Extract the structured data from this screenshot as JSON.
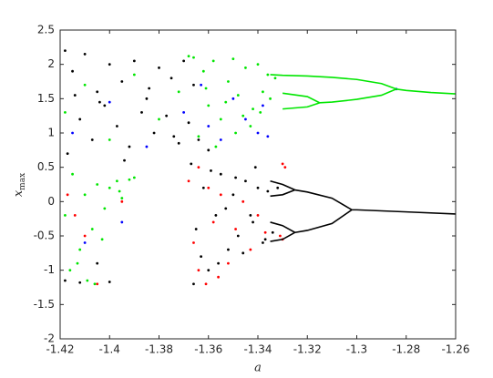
{
  "chart_data": {
    "type": "scatter",
    "xlabel": "a",
    "ylabel": "x",
    "ylabel_subscript": "max",
    "xlim": [
      -1.42,
      -1.26
    ],
    "xticks": [
      -1.42,
      -1.4,
      -1.38,
      -1.36,
      -1.34,
      -1.32,
      -1.3,
      -1.28,
      -1.26
    ],
    "ylim": [
      -2,
      2.5
    ],
    "yticks": [
      -2,
      -1.5,
      -1,
      -0.5,
      0,
      0.5,
      1,
      1.5,
      2,
      2.5
    ],
    "grid": false,
    "series": [
      {
        "color": "#000000",
        "style": "points",
        "x": [
          -1.418,
          -1.415,
          -1.41,
          -1.405,
          -1.4,
          -1.395,
          -1.39,
          -1.385,
          -1.38,
          -1.375,
          -1.37,
          -1.366,
          -1.417,
          -1.412,
          -1.407,
          -1.402,
          -1.397,
          -1.392,
          -1.387,
          -1.382,
          -1.377,
          -1.372,
          -1.368,
          -1.414,
          -1.404,
          -1.394,
          -1.384,
          -1.374,
          -1.364,
          -1.36
        ],
        "values": [
          2.2,
          1.9,
          2.15,
          1.6,
          2.0,
          1.75,
          2.05,
          1.5,
          1.95,
          1.8,
          2.05,
          1.7,
          0.7,
          1.2,
          0.9,
          1.4,
          1.1,
          0.8,
          1.3,
          1.0,
          1.25,
          0.85,
          1.15,
          1.55,
          1.45,
          0.6,
          1.65,
          0.95,
          0.9,
          0.75
        ]
      },
      {
        "color": "#00e600",
        "style": "points",
        "x": [
          -1.418,
          -1.41,
          -1.4,
          -1.39,
          -1.38,
          -1.372,
          -1.366,
          -1.362,
          -1.36,
          -1.358,
          -1.355,
          -1.352,
          -1.35,
          -1.348,
          -1.345,
          -1.342,
          -1.34,
          -1.338,
          -1.336,
          -1.364,
          -1.361,
          -1.357,
          -1.353,
          -1.349,
          -1.346,
          -1.343,
          -1.339,
          -1.335,
          -1.333,
          -1.368
        ],
        "values": [
          1.3,
          1.7,
          0.9,
          1.85,
          1.2,
          1.6,
          2.1,
          1.9,
          1.4,
          2.05,
          1.2,
          1.75,
          2.08,
          1.55,
          1.95,
          1.35,
          2.0,
          1.6,
          1.85,
          0.95,
          1.65,
          0.8,
          1.45,
          1.0,
          1.25,
          1.1,
          1.3,
          1.5,
          1.8,
          2.12
        ]
      },
      {
        "color": "#0000ff",
        "style": "points",
        "x": [
          -1.415,
          -1.4,
          -1.385,
          -1.37,
          -1.36,
          -1.355,
          -1.35,
          -1.345,
          -1.34,
          -1.338,
          -1.336,
          -1.363,
          -1.41,
          -1.395,
          -1.284
        ],
        "values": [
          1.0,
          1.45,
          0.8,
          1.3,
          1.1,
          0.9,
          1.5,
          1.2,
          1.0,
          1.4,
          0.95,
          1.7,
          -0.6,
          -0.3,
          1.64
        ]
      },
      {
        "color": "#000000",
        "style": "points",
        "x": [
          -1.367,
          -1.365,
          -1.362,
          -1.36,
          -1.357,
          -1.355,
          -1.352,
          -1.35,
          -1.348,
          -1.345,
          -1.342,
          -1.34,
          -1.338,
          -1.336,
          -1.334,
          -1.332,
          -1.366,
          -1.363,
          -1.359,
          -1.356,
          -1.353,
          -1.349,
          -1.346,
          -1.343,
          -1.341,
          -1.337,
          -1.418,
          -1.412,
          -1.405,
          -1.4
        ],
        "values": [
          0.55,
          -0.4,
          0.2,
          -1.0,
          -0.2,
          0.4,
          -0.7,
          0.1,
          -0.5,
          0.3,
          -0.3,
          0.2,
          -0.6,
          0.15,
          -0.45,
          0.2,
          -1.2,
          -0.8,
          0.45,
          -0.9,
          -0.1,
          0.35,
          -0.75,
          -0.2,
          0.5,
          -0.55,
          -1.15,
          -1.18,
          -0.9,
          -1.17
        ]
      },
      {
        "color": "#ff0000",
        "style": "points",
        "x": [
          -1.368,
          -1.366,
          -1.364,
          -1.361,
          -1.358,
          -1.355,
          -1.352,
          -1.349,
          -1.346,
          -1.343,
          -1.34,
          -1.337,
          -1.364,
          -1.36,
          -1.356,
          -1.417,
          -1.41,
          -1.405,
          -1.33,
          -1.329,
          -1.331,
          -1.33,
          -1.414,
          -1.395
        ],
        "values": [
          0.3,
          -0.6,
          0.5,
          -1.2,
          -0.3,
          0.1,
          -0.9,
          -0.4,
          0.0,
          -0.7,
          -0.2,
          -0.45,
          -1.0,
          0.2,
          -1.1,
          0.1,
          -0.5,
          -1.2,
          0.55,
          0.5,
          -0.5,
          -0.55,
          -0.2,
          0.0
        ]
      },
      {
        "color": "#00e600",
        "style": "points",
        "x": [
          -1.418,
          -1.415,
          -1.412,
          -1.41,
          -1.407,
          -1.405,
          -1.402,
          -1.4,
          -1.397,
          -1.395,
          -1.392,
          -1.39,
          -1.416,
          -1.409,
          -1.403,
          -1.396,
          -1.413,
          -1.406
        ],
        "values": [
          -0.2,
          0.4,
          -0.7,
          0.1,
          -0.4,
          0.25,
          -0.1,
          0.2,
          0.3,
          0.05,
          0.32,
          0.35,
          -1.0,
          -1.15,
          -0.55,
          0.15,
          -0.9,
          -1.2
        ]
      },
      {
        "color": "#00e600",
        "style": "line",
        "x": [
          -1.26,
          -1.27,
          -1.28,
          -1.284
        ],
        "values": [
          1.57,
          1.59,
          1.62,
          1.64
        ]
      },
      {
        "color": "#00e600",
        "style": "line",
        "x": [
          -1.284,
          -1.29,
          -1.3,
          -1.31,
          -1.32,
          -1.33,
          -1.335
        ],
        "values": [
          1.64,
          1.72,
          1.78,
          1.81,
          1.83,
          1.84,
          1.85
        ]
      },
      {
        "color": "#00e600",
        "style": "line",
        "x": [
          -1.284,
          -1.29,
          -1.3,
          -1.31,
          -1.315
        ],
        "values": [
          1.64,
          1.55,
          1.49,
          1.45,
          1.44
        ]
      },
      {
        "color": "#00e600",
        "style": "line",
        "x": [
          -1.315,
          -1.32,
          -1.33
        ],
        "values": [
          1.44,
          1.53,
          1.58
        ]
      },
      {
        "color": "#00e600",
        "style": "line",
        "x": [
          -1.315,
          -1.32,
          -1.33
        ],
        "values": [
          1.44,
          1.38,
          1.35
        ]
      },
      {
        "color": "#000000",
        "style": "line",
        "x": [
          -1.26,
          -1.28,
          -1.3,
          -1.302
        ],
        "values": [
          -0.18,
          -0.15,
          -0.12,
          -0.12
        ]
      },
      {
        "color": "#000000",
        "style": "line",
        "x": [
          -1.302,
          -1.31,
          -1.32,
          -1.325
        ],
        "values": [
          -0.12,
          0.05,
          0.14,
          0.17
        ]
      },
      {
        "color": "#000000",
        "style": "line",
        "x": [
          -1.325,
          -1.33,
          -1.335
        ],
        "values": [
          0.17,
          0.25,
          0.3
        ]
      },
      {
        "color": "#000000",
        "style": "line",
        "x": [
          -1.325,
          -1.33,
          -1.335
        ],
        "values": [
          0.17,
          0.1,
          0.08
        ]
      },
      {
        "color": "#000000",
        "style": "line",
        "x": [
          -1.302,
          -1.31,
          -1.32,
          -1.325
        ],
        "values": [
          -0.12,
          -0.32,
          -0.42,
          -0.45
        ]
      },
      {
        "color": "#000000",
        "style": "line",
        "x": [
          -1.325,
          -1.33,
          -1.335
        ],
        "values": [
          -0.45,
          -0.35,
          -0.3
        ]
      },
      {
        "color": "#000000",
        "style": "line",
        "x": [
          -1.325,
          -1.33,
          -1.335
        ],
        "values": [
          -0.45,
          -0.55,
          -0.58
        ]
      }
    ]
  }
}
